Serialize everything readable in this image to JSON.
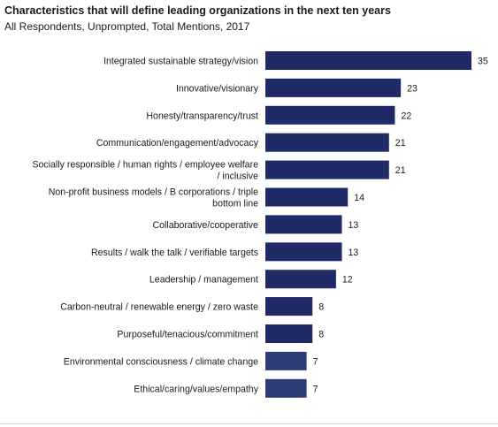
{
  "chart_data": {
    "type": "bar",
    "orientation": "horizontal",
    "title": "Characteristics that will define leading organizations in the next ten years",
    "subtitle": "All Respondents, Unprompted, Total Mentions, 2017",
    "categories": [
      "Integrated sustainable strategy/vision",
      "Innovative/visionary",
      "Honesty/transparency/trust",
      "Communication/engagement/advocacy",
      "Socially responsible / human rights / employee welfare / inclusive",
      "Non-profit business models / B corporations / triple bottom line",
      "Collaborative/cooperative",
      "Results / walk the talk / verifiable targets",
      "Leadership / management",
      "Carbon-neutral / renewable energy / zero waste",
      "Purposeful/tenacious/commitment",
      "Environmental consciousness / climate change",
      "Ethical/caring/values/empathy"
    ],
    "category_lines": [
      [
        "Integrated sustainable strategy/vision"
      ],
      [
        "Innovative/visionary"
      ],
      [
        "Honesty/transparency/trust"
      ],
      [
        "Communication/engagement/advocacy"
      ],
      [
        "Socially responsible / human rights / employee welfare",
        "/ inclusive"
      ],
      [
        "Non-profit business models / B corporations / triple",
        "bottom line"
      ],
      [
        "Collaborative/cooperative"
      ],
      [
        "Results / walk the talk / verifiable targets"
      ],
      [
        "Leadership / management"
      ],
      [
        "Carbon-neutral / renewable energy / zero waste"
      ],
      [
        "Purposeful/tenacious/commitment"
      ],
      [
        "Environmental consciousness / climate change"
      ],
      [
        "Ethical/caring/values/empathy"
      ]
    ],
    "values": [
      35,
      23,
      22,
      21,
      21,
      14,
      13,
      13,
      12,
      8,
      8,
      7,
      7
    ],
    "bar_colors": [
      "#1f2a66",
      "#1f2a66",
      "#1f2a66",
      "#1f2a66",
      "#1f2a66",
      "#1f2a66",
      "#1f2a66",
      "#1f2a66",
      "#1f2a66",
      "#1f2a66",
      "#1f2a66",
      "#2d3b74",
      "#2d3b74"
    ],
    "xlim": [
      0,
      35
    ],
    "data_labels": true,
    "grid": false,
    "legend": "none"
  }
}
